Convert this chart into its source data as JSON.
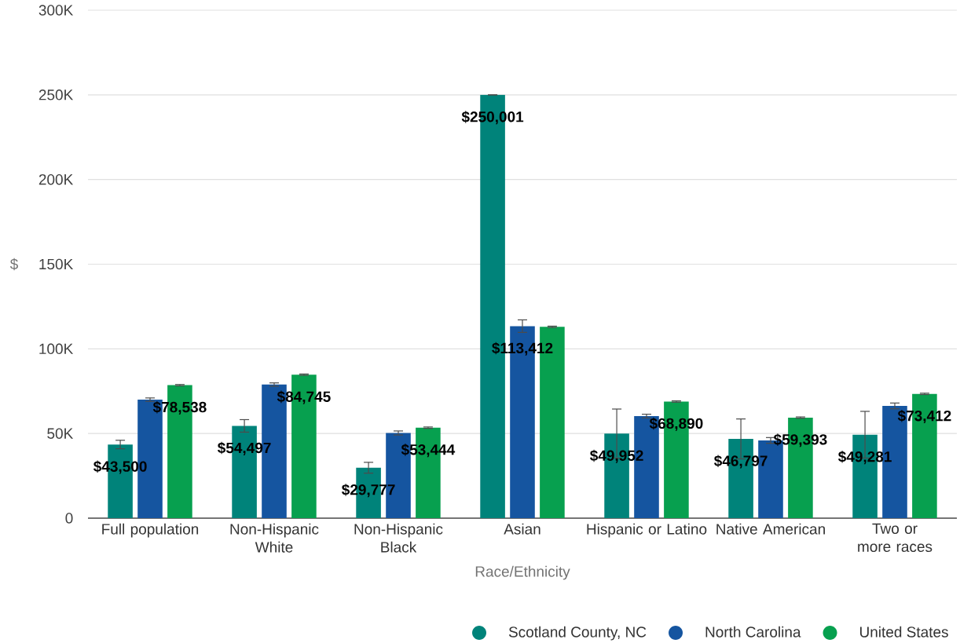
{
  "chart_data": {
    "type": "bar",
    "xlabel": "Race/Ethnicity",
    "ylabel": "$",
    "categories": [
      "Full population",
      "Non-Hispanic White",
      "Non-Hispanic Black",
      "Asian",
      "Hispanic or Latino",
      "Native American",
      "Two or more races"
    ],
    "series": [
      {
        "name": "Scotland County, NC",
        "color": "#00837a",
        "values": [
          43500,
          54497,
          29777,
          250001,
          49952,
          46797,
          49281
        ],
        "errors": [
          2500,
          3700,
          3200,
          null,
          14500,
          11800,
          13800
        ],
        "value_labels": [
          "$43,500",
          "$54,497",
          "$29,777",
          "$250,001",
          "$49,952",
          "$46,797",
          "$49,281"
        ]
      },
      {
        "name": "North Carolina",
        "color": "#1555a0",
        "values": [
          70000,
          78900,
          50300,
          113412,
          60300,
          45900,
          66300
        ],
        "errors": [
          1000,
          1000,
          1200,
          3700,
          1100,
          1700,
          1700
        ],
        "value_labels": [
          null,
          null,
          null,
          "$113,412",
          null,
          null,
          null
        ]
      },
      {
        "name": "United States",
        "color": "#07a04f",
        "values": [
          78538,
          84745,
          53444,
          113000,
          68890,
          59393,
          73412
        ],
        "errors": [
          400,
          400,
          400,
          400,
          400,
          400,
          400
        ],
        "value_labels": [
          "$78,538",
          "$84,745",
          "$53,444",
          null,
          "$68,890",
          "$59,393",
          "$73,412"
        ]
      }
    ],
    "ylim": [
      0,
      300000
    ],
    "yticks": [
      0,
      {
        "value": 50000,
        "label": "50K"
      },
      {
        "value": 100000,
        "label": "100K"
      },
      {
        "value": 150000,
        "label": "150K"
      },
      {
        "value": 200000,
        "label": "200K"
      },
      {
        "value": 250000,
        "label": "250K"
      },
      {
        "value": 300000,
        "label": "300K"
      }
    ],
    "grid": "y",
    "legend": "bottom"
  }
}
